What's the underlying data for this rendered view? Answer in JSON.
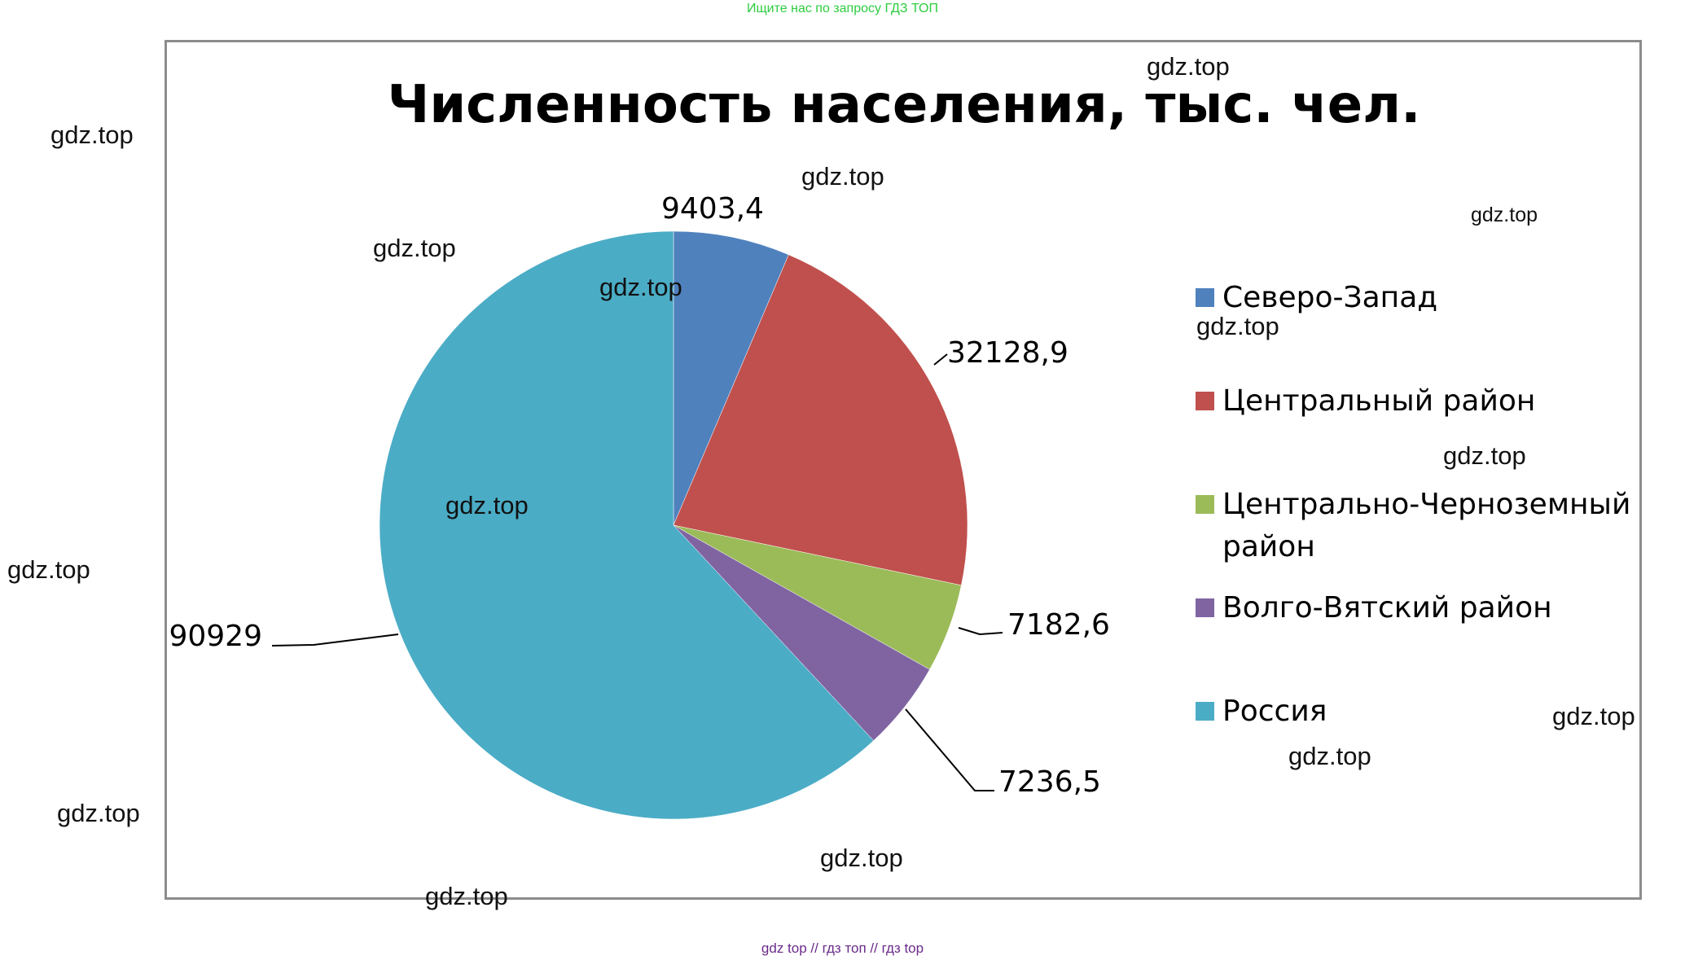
{
  "top_banner": "Ищите нас по запросу ГДЗ ТОП",
  "bottom_banner": "gdz top  //  гдз топ  //  гдз top",
  "watermark_text": "gdz.top",
  "chart_data": {
    "type": "pie",
    "title": "Численность населения, тыс. чел.",
    "start_angle_deg": 0,
    "direction": "clockwise",
    "legend_position": "right",
    "slices": [
      {
        "label": "Северо-Запад",
        "value": 9403.4,
        "value_label": "9403,4",
        "color": "#4f81bd"
      },
      {
        "label": "Центральный район",
        "value": 32128.9,
        "value_label": "32128,9",
        "color": "#c0504d"
      },
      {
        "label": "Центрально-Черноземный район",
        "value": 7182.6,
        "value_label": "7182,6",
        "color": "#9bbb59"
      },
      {
        "label": "Волго-Вятский район",
        "value": 7236.5,
        "value_label": "7236,5",
        "color": "#8064a2"
      },
      {
        "label": "Россия",
        "value": 90929,
        "value_label": "90929",
        "color": "#4bacc6"
      }
    ]
  }
}
